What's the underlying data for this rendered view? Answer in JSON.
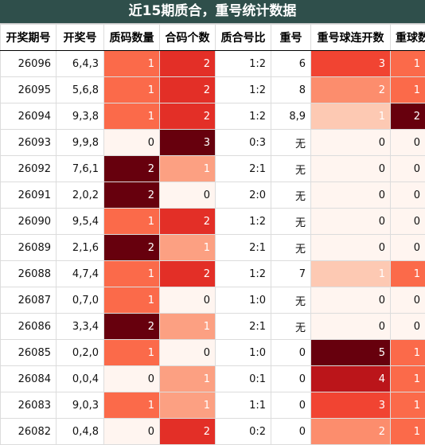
{
  "title": "近15期质合，重号统计数据",
  "columns": [
    "开奖期号",
    "开奖号",
    "质码数量",
    "合码个数",
    "质合号比",
    "重号",
    "重号球连开数",
    "重球数"
  ],
  "rows": [
    {
      "period": "26096",
      "numbers": "6,4,3",
      "prime_count": 1,
      "composite_count": 2,
      "ratio": "1:2",
      "repeat": "6",
      "repeat_streak": 3,
      "repeat_balls": 1
    },
    {
      "period": "26095",
      "numbers": "5,6,8",
      "prime_count": 1,
      "composite_count": 2,
      "ratio": "1:2",
      "repeat": "8",
      "repeat_streak": 2,
      "repeat_balls": 1
    },
    {
      "period": "26094",
      "numbers": "9,3,8",
      "prime_count": 1,
      "composite_count": 2,
      "ratio": "1:2",
      "repeat": "8,9",
      "repeat_streak": 1,
      "repeat_balls": 2
    },
    {
      "period": "26093",
      "numbers": "9,9,8",
      "prime_count": 0,
      "composite_count": 3,
      "ratio": "0:3",
      "repeat": "无",
      "repeat_streak": 0,
      "repeat_balls": 0
    },
    {
      "period": "26092",
      "numbers": "7,6,1",
      "prime_count": 2,
      "composite_count": 1,
      "ratio": "2:1",
      "repeat": "无",
      "repeat_streak": 0,
      "repeat_balls": 0
    },
    {
      "period": "26091",
      "numbers": "2,0,2",
      "prime_count": 2,
      "composite_count": 0,
      "ratio": "2:0",
      "repeat": "无",
      "repeat_streak": 0,
      "repeat_balls": 0
    },
    {
      "period": "26090",
      "numbers": "9,5,4",
      "prime_count": 1,
      "composite_count": 2,
      "ratio": "1:2",
      "repeat": "无",
      "repeat_streak": 0,
      "repeat_balls": 0
    },
    {
      "period": "26089",
      "numbers": "2,1,6",
      "prime_count": 2,
      "composite_count": 1,
      "ratio": "2:1",
      "repeat": "无",
      "repeat_streak": 0,
      "repeat_balls": 0
    },
    {
      "period": "26088",
      "numbers": "4,7,4",
      "prime_count": 1,
      "composite_count": 2,
      "ratio": "1:2",
      "repeat": "7",
      "repeat_streak": 1,
      "repeat_balls": 1
    },
    {
      "period": "26087",
      "numbers": "0,7,0",
      "prime_count": 1,
      "composite_count": 0,
      "ratio": "1:0",
      "repeat": "无",
      "repeat_streak": 0,
      "repeat_balls": 0
    },
    {
      "period": "26086",
      "numbers": "3,3,4",
      "prime_count": 2,
      "composite_count": 1,
      "ratio": "2:1",
      "repeat": "无",
      "repeat_streak": 0,
      "repeat_balls": 0
    },
    {
      "period": "26085",
      "numbers": "0,2,0",
      "prime_count": 1,
      "composite_count": 0,
      "ratio": "1:0",
      "repeat": "0",
      "repeat_streak": 5,
      "repeat_balls": 1
    },
    {
      "period": "26084",
      "numbers": "0,0,4",
      "prime_count": 0,
      "composite_count": 1,
      "ratio": "0:1",
      "repeat": "0",
      "repeat_streak": 4,
      "repeat_balls": 1
    },
    {
      "period": "26083",
      "numbers": "9,0,3",
      "prime_count": 1,
      "composite_count": 1,
      "ratio": "1:1",
      "repeat": "0",
      "repeat_streak": 3,
      "repeat_balls": 1
    },
    {
      "period": "26082",
      "numbers": "0,4,8",
      "prime_count": 0,
      "composite_count": 2,
      "ratio": "0:2",
      "repeat": "0",
      "repeat_streak": 2,
      "repeat_balls": 1
    }
  ],
  "colors": {
    "prime_count": {
      "0": "#fff5f0",
      "1": "#fb6a4a",
      "2": "#67000d"
    },
    "composite_count": {
      "0": "#fff5f0",
      "1": "#fca082",
      "2": "#e32f27",
      "3": "#67000d"
    },
    "repeat_streak": {
      "0": "#fff5f0",
      "1": "#fdc9b3",
      "2": "#fc8d6d",
      "3": "#f14432",
      "4": "#bb151a",
      "5": "#67000d"
    },
    "repeat_balls": {
      "0": "#fff5f0",
      "1": "#fb6a4a",
      "2": "#67000d"
    }
  },
  "text_colors": {
    "dark": "#111111",
    "light": "#ffffff"
  }
}
